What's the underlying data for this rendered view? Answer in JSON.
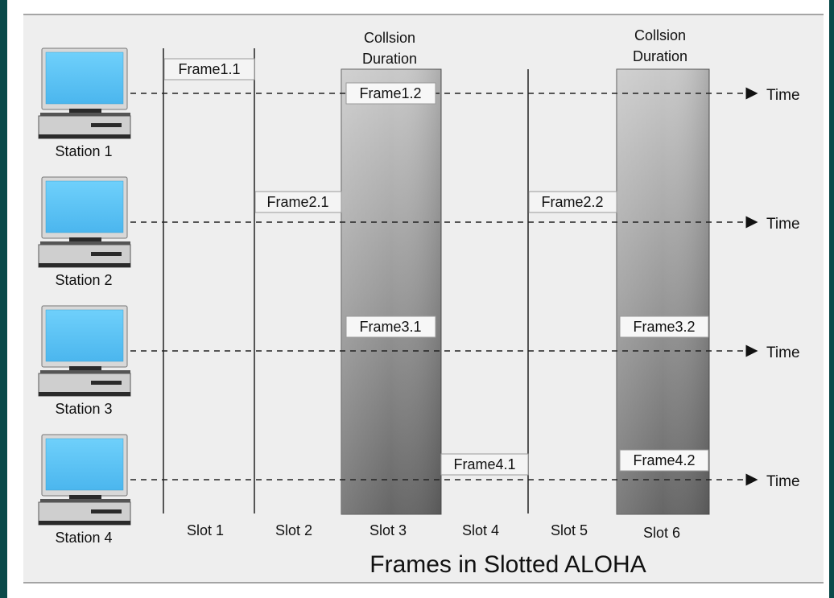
{
  "diagram": {
    "title": "Frames in Slotted ALOHA",
    "stations": [
      "Station 1",
      "Station 2",
      "Station 3",
      "Station 4"
    ],
    "slots": [
      "Slot 1",
      "Slot 2",
      "Slot 3",
      "Slot 4",
      "Slot 5",
      "Slot 6"
    ],
    "time_label": "Time",
    "collisions": [
      {
        "header_line1": "Collsion",
        "header_line2": "Duration"
      },
      {
        "header_line1": "Collsion",
        "header_line2": "Duration"
      }
    ],
    "frames": [
      "Frame1.1",
      "Frame1.2",
      "Frame2.1",
      "Frame2.2",
      "Frame3.1",
      "Frame3.2",
      "Frame4.1",
      "Frame4.2"
    ],
    "colors": {
      "screen": "#5ec6f7",
      "bezel": "#d8d8d8",
      "dark": "#2a2a2a"
    }
  }
}
